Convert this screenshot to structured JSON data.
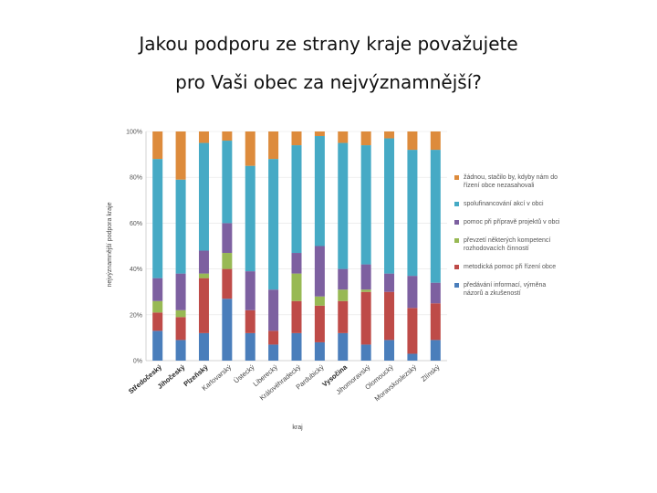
{
  "slide": {
    "title_line1": "Jakou podporu ze strany kraje považujete",
    "title_line2": "pro Vaši obec za nejvýznamnější?"
  },
  "chart_data": {
    "type": "bar",
    "stacked": "percent",
    "title": "",
    "xlabel": "kraj",
    "ylabel": "nejvýznamnější podpora kraje",
    "ylim": [
      0,
      100
    ],
    "yticks": [
      "0%",
      "20%",
      "40%",
      "60%",
      "80%",
      "100%"
    ],
    "legend_position": "right",
    "categories": [
      "Středočeský",
      "Jihočeský",
      "Plzeňský",
      "Karlovarský",
      "Ústecký",
      "Liberecký",
      "Královéhradecký",
      "Pardubický",
      "Vysočina",
      "Jihomoravský",
      "Olomoucký",
      "Moravskoslezský",
      "Zlínský"
    ],
    "bold_categories": [
      "Středočeský",
      "Jihočeský",
      "Plzeňský",
      "Vysočina"
    ],
    "series": [
      {
        "name": "předávání informací, výměna názorů a zkušeností",
        "color": "#4a7ebb",
        "values": [
          13,
          9,
          12,
          27,
          12,
          7,
          12,
          8,
          12,
          7,
          9,
          3,
          9
        ]
      },
      {
        "name": "metodická pomoc při řízení obce",
        "color": "#be4b48",
        "values": [
          8,
          10,
          24,
          13,
          10,
          6,
          14,
          16,
          14,
          23,
          21,
          20,
          16
        ]
      },
      {
        "name": "převzetí některých kompetencí rozhodovacích činností",
        "color": "#98b954",
        "values": [
          5,
          3,
          2,
          7,
          0,
          0,
          12,
          4,
          5,
          1,
          0,
          0,
          0
        ]
      },
      {
        "name": "pomoc při přípravě projektů v obci",
        "color": "#7d60a0",
        "values": [
          10,
          16,
          10,
          13,
          17,
          18,
          9,
          22,
          9,
          11,
          8,
          14,
          9
        ]
      },
      {
        "name": "spolufinancování akcí v obci",
        "color": "#46aac5",
        "values": [
          52,
          41,
          47,
          36,
          46,
          57,
          47,
          48,
          55,
          52,
          59,
          55,
          58
        ]
      },
      {
        "name": "žádnou, stačilo by, kdyby nám do řízení obce nezasahovali",
        "color": "#dd8b3c",
        "values": [
          12,
          21,
          5,
          4,
          15,
          12,
          6,
          2,
          5,
          6,
          3,
          8,
          8
        ]
      }
    ]
  }
}
